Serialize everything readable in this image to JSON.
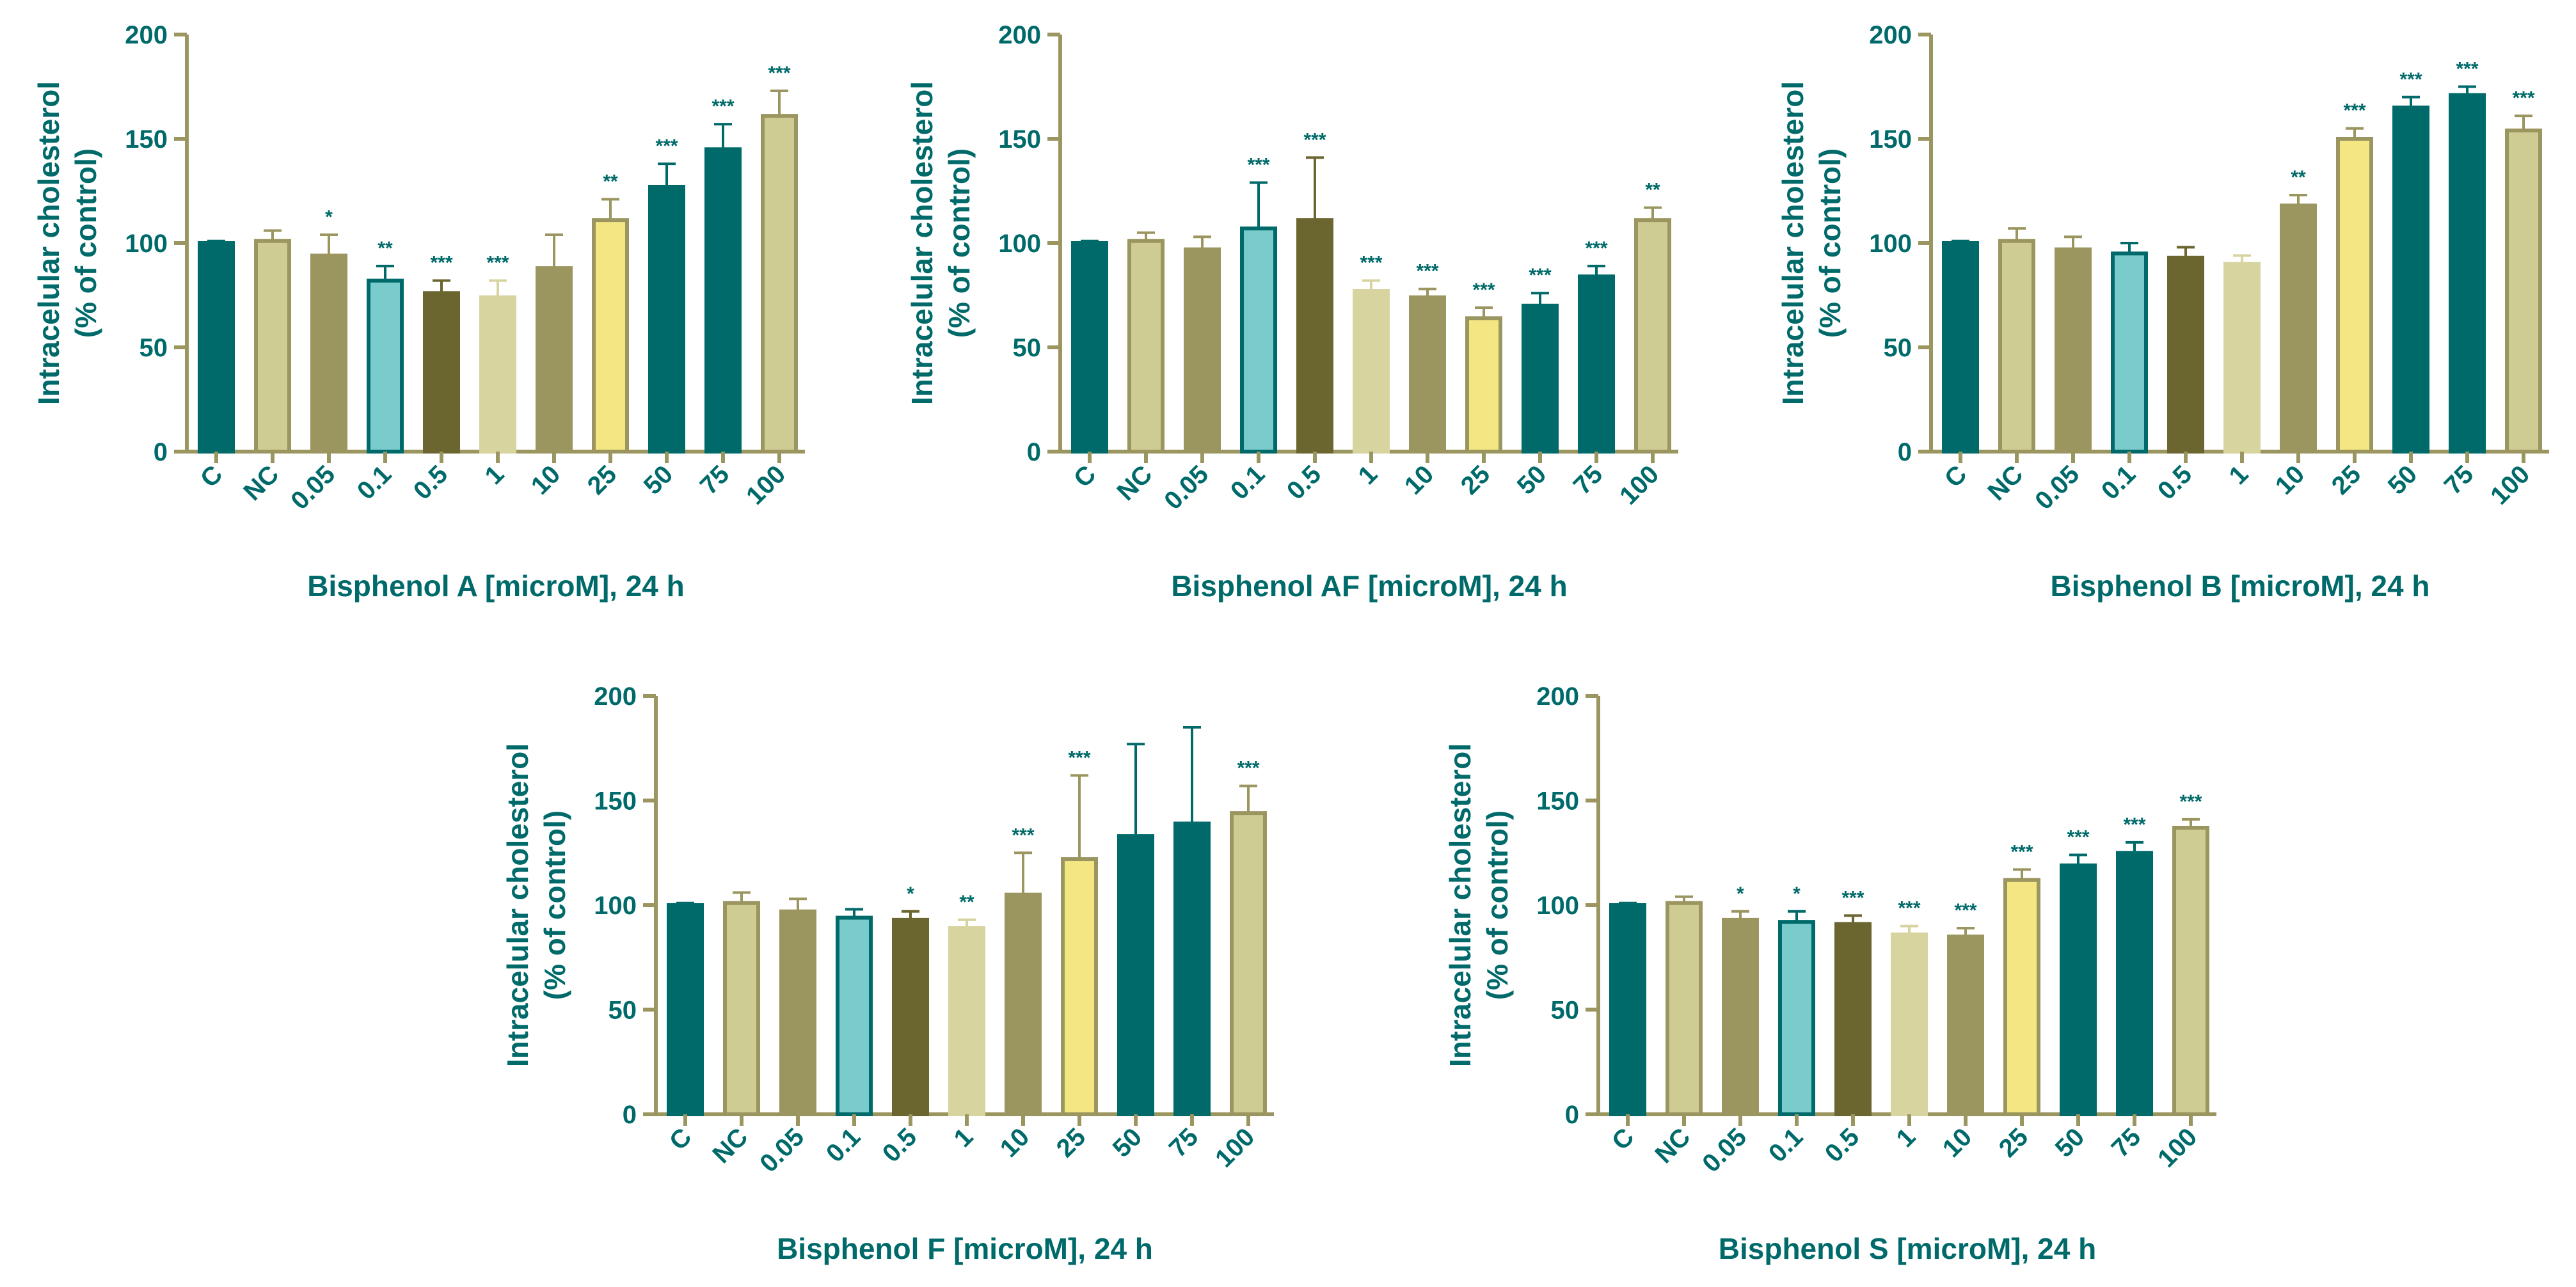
{
  "figure": {
    "colors": {
      "axis": "#9b9660",
      "label": "#006a6a",
      "star": "#006a6a",
      "bar_colors": [
        "#006a6a",
        "#cfcc93",
        "#9b9660",
        "#7acccc",
        "#6b6530",
        "#d7d4a0",
        "#9b9660",
        "#f4e682",
        "#006a6a",
        "#006a6a",
        "#cfcc93"
      ],
      "bar_borders": [
        "#006a6a",
        "#9b9660",
        "#9b9660",
        "#006a6a",
        "#6b6530",
        "#d7d4a0",
        "#9b9660",
        "#9b9660",
        "#006a6a",
        "#006a6a",
        "#9b9660"
      ]
    }
  },
  "chart_data": [
    {
      "type": "bar",
      "title": "",
      "xlabel": "Bisphenol A [microM], 24 h",
      "ylabel_line1": "Intracelular cholesterol",
      "ylabel_line2": "(% of control)",
      "ylim": [
        0,
        200
      ],
      "yticks": [
        "0",
        "50",
        "100",
        "150",
        "200"
      ],
      "categories": [
        "C",
        "NC",
        "0.05",
        "0.1",
        "0.5",
        "1",
        "10",
        "25",
        "50",
        "75",
        "100"
      ],
      "values": [
        100,
        101,
        94,
        82,
        76,
        74,
        88,
        111,
        127,
        145,
        161
      ],
      "errors": [
        1,
        5,
        10,
        7,
        6,
        8,
        16,
        10,
        11,
        12,
        12
      ],
      "significance": [
        "",
        "",
        "*",
        "**",
        "***",
        "***",
        "",
        "**",
        "***",
        "***",
        "***"
      ]
    },
    {
      "type": "bar",
      "title": "",
      "xlabel": "Bisphenol AF [microM], 24 h",
      "ylabel_line1": "Intracelular cholesterol",
      "ylabel_line2": "(% of control)",
      "ylim": [
        0,
        200
      ],
      "yticks": [
        "0",
        "50",
        "100",
        "150",
        "200"
      ],
      "categories": [
        "C",
        "NC",
        "0.05",
        "0.1",
        "0.5",
        "1",
        "10",
        "25",
        "50",
        "75",
        "100"
      ],
      "values": [
        100,
        101,
        97,
        107,
        111,
        77,
        74,
        64,
        70,
        84,
        111
      ],
      "errors": [
        1,
        4,
        6,
        22,
        30,
        5,
        4,
        5,
        6,
        5,
        6
      ],
      "significance": [
        "",
        "",
        "",
        "***",
        "***",
        "***",
        "***",
        "***",
        "***",
        "***",
        "**"
      ]
    },
    {
      "type": "bar",
      "title": "",
      "xlabel": "Bisphenol B [microM], 24 h",
      "ylabel_line1": "Intracelular cholesterol",
      "ylabel_line2": "(% of control)",
      "ylim": [
        0,
        200
      ],
      "yticks": [
        "0",
        "50",
        "100",
        "150",
        "200"
      ],
      "categories": [
        "C",
        "NC",
        "0.05",
        "0.1",
        "0.5",
        "1",
        "10",
        "25",
        "50",
        "75",
        "100"
      ],
      "values": [
        100,
        101,
        97,
        95,
        93,
        90,
        118,
        150,
        165,
        171,
        154
      ],
      "errors": [
        1,
        6,
        6,
        5,
        5,
        4,
        5,
        5,
        5,
        4,
        7
      ],
      "significance": [
        "",
        "",
        "",
        "",
        "",
        "",
        "**",
        "***",
        "***",
        "***",
        "***"
      ]
    },
    {
      "type": "bar",
      "title": "",
      "xlabel": "Bisphenol F [microM], 24 h",
      "ylabel_line1": "Intracelular cholesterol",
      "ylabel_line2": "(% of control)",
      "ylim": [
        0,
        200
      ],
      "yticks": [
        "0",
        "50",
        "100",
        "150",
        "200"
      ],
      "categories": [
        "C",
        "NC",
        "0.05",
        "0.1",
        "0.5",
        "1",
        "10",
        "25",
        "50",
        "75",
        "100"
      ],
      "values": [
        100,
        101,
        97,
        94,
        93,
        89,
        105,
        122,
        133,
        139,
        144
      ],
      "errors": [
        1,
        5,
        6,
        4,
        4,
        4,
        20,
        40,
        44,
        46,
        13
      ],
      "significance": [
        "",
        "",
        "",
        "",
        "*",
        "**",
        "***",
        "***",
        "",
        "",
        "***"
      ]
    },
    {
      "type": "bar",
      "title": "",
      "xlabel": "Bisphenol S [microM], 24 h",
      "ylabel_line1": "Intracelular cholesterol",
      "ylabel_line2": "(% of control)",
      "ylim": [
        0,
        200
      ],
      "yticks": [
        "0",
        "50",
        "100",
        "150",
        "200"
      ],
      "categories": [
        "C",
        "NC",
        "0.05",
        "0.1",
        "0.5",
        "1",
        "10",
        "25",
        "50",
        "75",
        "100"
      ],
      "values": [
        100,
        101,
        93,
        92,
        91,
        86,
        85,
        112,
        119,
        125,
        137
      ],
      "errors": [
        1,
        3,
        4,
        5,
        4,
        4,
        4,
        5,
        5,
        5,
        4
      ],
      "significance": [
        "",
        "",
        "*",
        "*",
        "***",
        "***",
        "***",
        "***",
        "***",
        "***",
        "***"
      ]
    }
  ]
}
